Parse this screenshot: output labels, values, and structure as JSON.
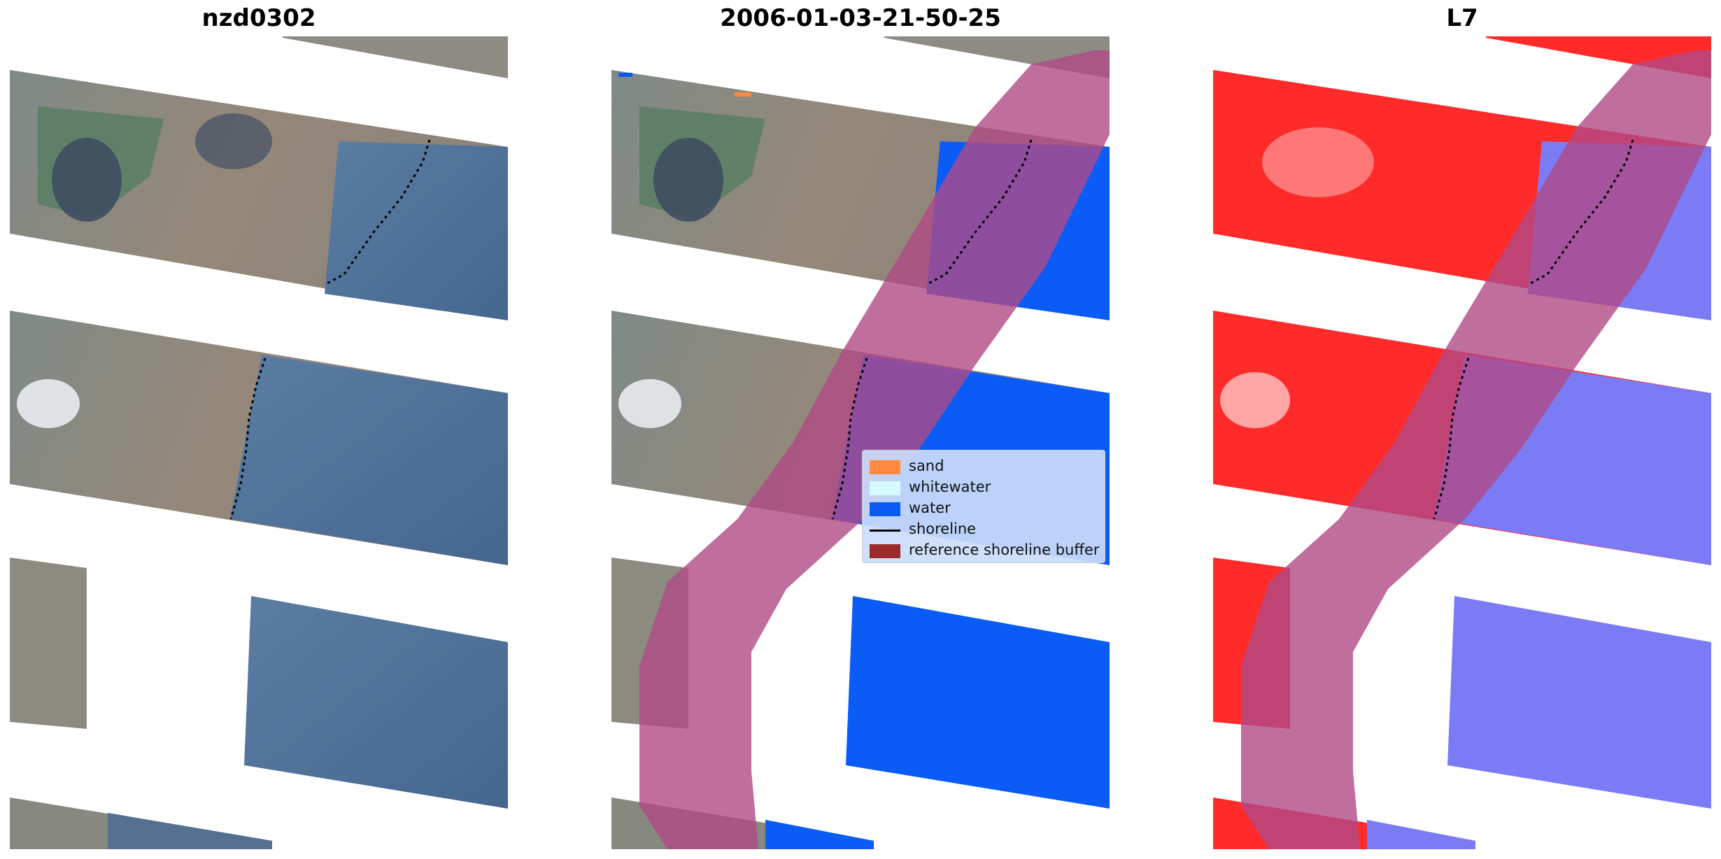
{
  "titles": {
    "left": "nzd0302",
    "center": "2006-01-03-21-50-25",
    "right": "L7"
  },
  "legend": {
    "items": [
      {
        "label": "sand",
        "color": "#fd8a3f",
        "kind": "patch"
      },
      {
        "label": "whitewater",
        "color": "#d6fbff",
        "kind": "patch"
      },
      {
        "label": "water",
        "color": "#0b5cf7",
        "kind": "patch"
      },
      {
        "label": "shoreline",
        "color": "#000000",
        "kind": "line"
      },
      {
        "label": "reference shoreline buffer",
        "color": "#9b2b2b",
        "kind": "patch"
      }
    ]
  },
  "colors": {
    "land": "#8d8a80",
    "land_dark": "#4f5a63",
    "vegetation": "#4c7a5a",
    "sea_rgb": "#4f6f97",
    "water_class": "#0b5cf7",
    "buffer_overlay": "#b04a86",
    "land_index": "#ff2a2a",
    "water_index": "#7b7bf6",
    "shoreline": "#000000"
  }
}
